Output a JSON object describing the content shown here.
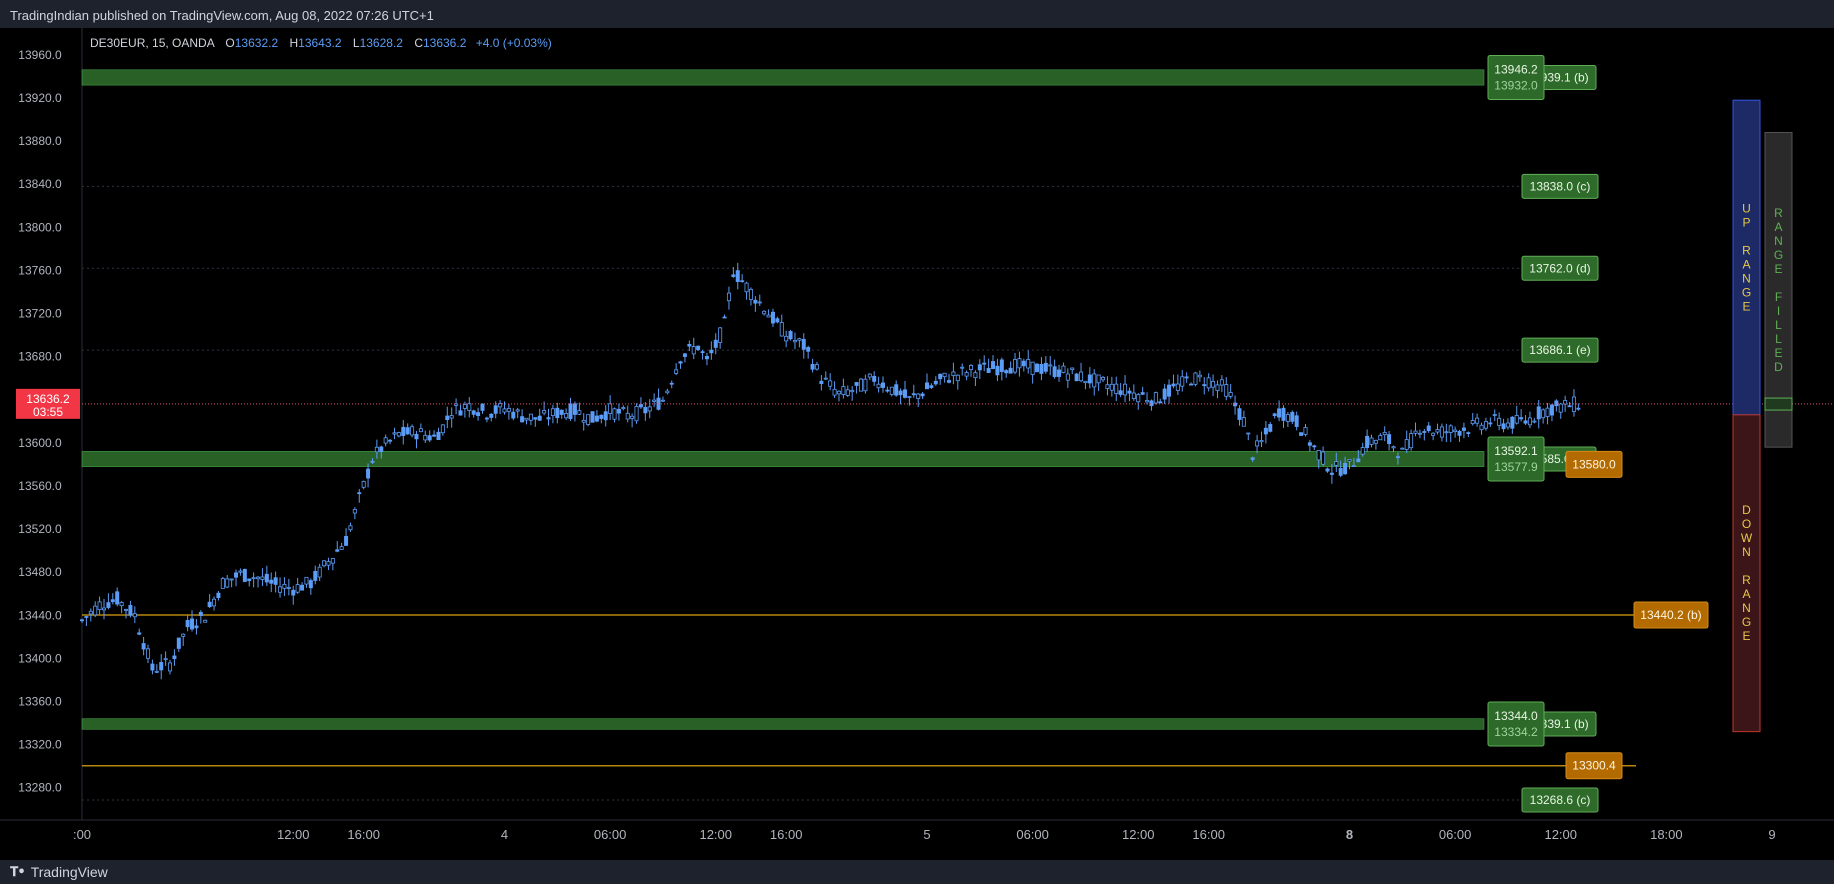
{
  "header": {
    "published_text": "TradingIndian published on TradingView.com, Aug 08, 2022 07:26 UTC+1"
  },
  "footer": {
    "logo_text": "TradingView",
    "logo_icon": "tradingview-logo-icon"
  },
  "legend": {
    "symbol": "DE30EUR, 15, OANDA",
    "o_label": "O",
    "o_value": "13632.2",
    "h_label": "H",
    "h_value": "13643.2",
    "l_label": "L",
    "l_value": "13628.2",
    "c_label": "C",
    "c_value": "13636.2",
    "change": "+4.0 (+0.03%)"
  },
  "colors": {
    "background": "#000000",
    "candle": "#5b9cf6",
    "zone_green": "#2e6b2a",
    "label_green": "#2e6b2a",
    "orange": "#b36b00",
    "price_tag": "#f23645",
    "up_range": "#1d2a66",
    "down_range": "#3b1518",
    "filled": "#2a2a2a"
  },
  "price_tag": {
    "price": "13636.2",
    "countdown": "03:55"
  },
  "chart_data": {
    "type": "candlestick",
    "symbol": "DE30EUR",
    "interval": "15",
    "ylim": [
      13250,
      13985
    ],
    "y_ticks": [
      "13960.0",
      "13920.0",
      "13880.0",
      "13840.0",
      "13800.0",
      "13760.0",
      "13720.0",
      "13680.0",
      "13600.0",
      "13560.0",
      "13520.0",
      "13480.0",
      "13440.0",
      "13400.0",
      "13360.0",
      "13320.0",
      "13280.0"
    ],
    "y_tick_values": [
      13960,
      13920,
      13880,
      13840,
      13800,
      13760,
      13720,
      13680,
      13600,
      13560,
      13520,
      13480,
      13440,
      13400,
      13360,
      13320,
      13280
    ],
    "x_ticks": [
      {
        "label": ":00",
        "t": 0
      },
      {
        "label": "12:00",
        "t": 12
      },
      {
        "label": "16:00",
        "t": 16
      },
      {
        "label": "4",
        "t": 24
      },
      {
        "label": "06:00",
        "t": 30
      },
      {
        "label": "12:00",
        "t": 36
      },
      {
        "label": "16:00",
        "t": 40
      },
      {
        "label": "5",
        "t": 48
      },
      {
        "label": "06:00",
        "t": 54
      },
      {
        "label": "12:00",
        "t": 60
      },
      {
        "label": "16:00",
        "t": 64
      },
      {
        "label": "8",
        "t": 72,
        "bold": true
      },
      {
        "label": "06:00",
        "t": 78
      },
      {
        "label": "12:00",
        "t": 84
      },
      {
        "label": "18:00",
        "t": 90
      },
      {
        "label": "9",
        "t": 96
      }
    ],
    "price_path": [
      [
        0,
        13435
      ],
      [
        1,
        13450
      ],
      [
        2,
        13455
      ],
      [
        3,
        13440
      ],
      [
        4,
        13390
      ],
      [
        5,
        13395
      ],
      [
        6,
        13430
      ],
      [
        7,
        13440
      ],
      [
        8,
        13470
      ],
      [
        9,
        13478
      ],
      [
        10,
        13475
      ],
      [
        11,
        13468
      ],
      [
        12,
        13465
      ],
      [
        13,
        13470
      ],
      [
        14,
        13490
      ],
      [
        15,
        13510
      ],
      [
        16,
        13560
      ],
      [
        16.5,
        13585
      ],
      [
        17,
        13595
      ],
      [
        18,
        13608
      ],
      [
        19,
        13610
      ],
      [
        20,
        13605
      ],
      [
        20.5,
        13615
      ],
      [
        21,
        13630
      ],
      [
        22,
        13635
      ],
      [
        23,
        13628
      ],
      [
        24,
        13632
      ],
      [
        25,
        13625
      ],
      [
        26,
        13622
      ],
      [
        27,
        13628
      ],
      [
        28,
        13630
      ],
      [
        29,
        13622
      ],
      [
        30,
        13630
      ],
      [
        31,
        13625
      ],
      [
        32,
        13630
      ],
      [
        33,
        13640
      ],
      [
        34,
        13680
      ],
      [
        35,
        13690
      ],
      [
        35.5,
        13675
      ],
      [
        36,
        13690
      ],
      [
        36.5,
        13710
      ],
      [
        37,
        13760
      ],
      [
        38,
        13740
      ],
      [
        39,
        13720
      ],
      [
        40,
        13700
      ],
      [
        41,
        13690
      ],
      [
        42,
        13660
      ],
      [
        43,
        13645
      ],
      [
        44,
        13650
      ],
      [
        45,
        13660
      ],
      [
        46,
        13650
      ],
      [
        47,
        13640
      ],
      [
        48,
        13650
      ],
      [
        49,
        13660
      ],
      [
        50,
        13665
      ],
      [
        51,
        13668
      ],
      [
        52,
        13670
      ],
      [
        53,
        13672
      ],
      [
        54,
        13670
      ],
      [
        55,
        13668
      ],
      [
        56,
        13665
      ],
      [
        57,
        13660
      ],
      [
        58,
        13655
      ],
      [
        59,
        13650
      ],
      [
        60,
        13645
      ],
      [
        61,
        13640
      ],
      [
        62,
        13650
      ],
      [
        63,
        13660
      ],
      [
        64,
        13658
      ],
      [
        65,
        13650
      ],
      [
        66,
        13620
      ],
      [
        66.5,
        13590
      ],
      [
        67,
        13600
      ],
      [
        68,
        13630
      ],
      [
        69,
        13620
      ],
      [
        70,
        13595
      ],
      [
        71,
        13575
      ],
      [
        72,
        13578
      ],
      [
        73,
        13600
      ],
      [
        74,
        13605
      ],
      [
        75,
        13590
      ],
      [
        76,
        13615
      ],
      [
        77,
        13610
      ],
      [
        78,
        13612
      ],
      [
        79,
        13615
      ],
      [
        80,
        13620
      ],
      [
        81,
        13618
      ],
      [
        82,
        13620
      ],
      [
        83,
        13630
      ],
      [
        84,
        13634
      ],
      [
        85,
        13636.2
      ]
    ],
    "price_line": 13636.2,
    "horizontal_zones": [
      {
        "top": 13946.2,
        "bottom": 13932.0,
        "label_top": "13946.2",
        "label_bottom": "13932.0",
        "side_label": "13939.1 (b)"
      },
      {
        "top": 13592.1,
        "bottom": 13577.9,
        "label_top": "13592.1",
        "label_bottom": "13577.9",
        "side_label": "13585.0 (a)"
      },
      {
        "top": 13344.0,
        "bottom": 13334.2,
        "label_top": "13344.0",
        "label_bottom": "13334.2",
        "side_label": "13339.1 (b)"
      }
    ],
    "dotted_levels": [
      {
        "value": 13838.0,
        "label": "13838.0 (c)"
      },
      {
        "value": 13762.0,
        "label": "13762.0 (d)"
      },
      {
        "value": 13686.1,
        "label": "13686.1 (e)"
      },
      {
        "value": 13268.6,
        "label": "13268.6 (c)"
      }
    ],
    "orange_levels": [
      {
        "value": 13440.2,
        "label": "13440.2 (b)",
        "from_start": true
      },
      {
        "value": 13300.4,
        "label": "13300.4",
        "from_start": true
      },
      {
        "value": 13580.0,
        "label": "13580.0",
        "from_start": false
      }
    ],
    "range_boxes": {
      "up": {
        "text": "UP RANGE",
        "top": 13918,
        "bottom": 13626
      },
      "down": {
        "text": "DOWN RANGE",
        "top": 13626,
        "bottom": 13332
      },
      "filled": {
        "text": "RANGE FILLED",
        "top": 13888,
        "bottom": 13596
      }
    }
  }
}
